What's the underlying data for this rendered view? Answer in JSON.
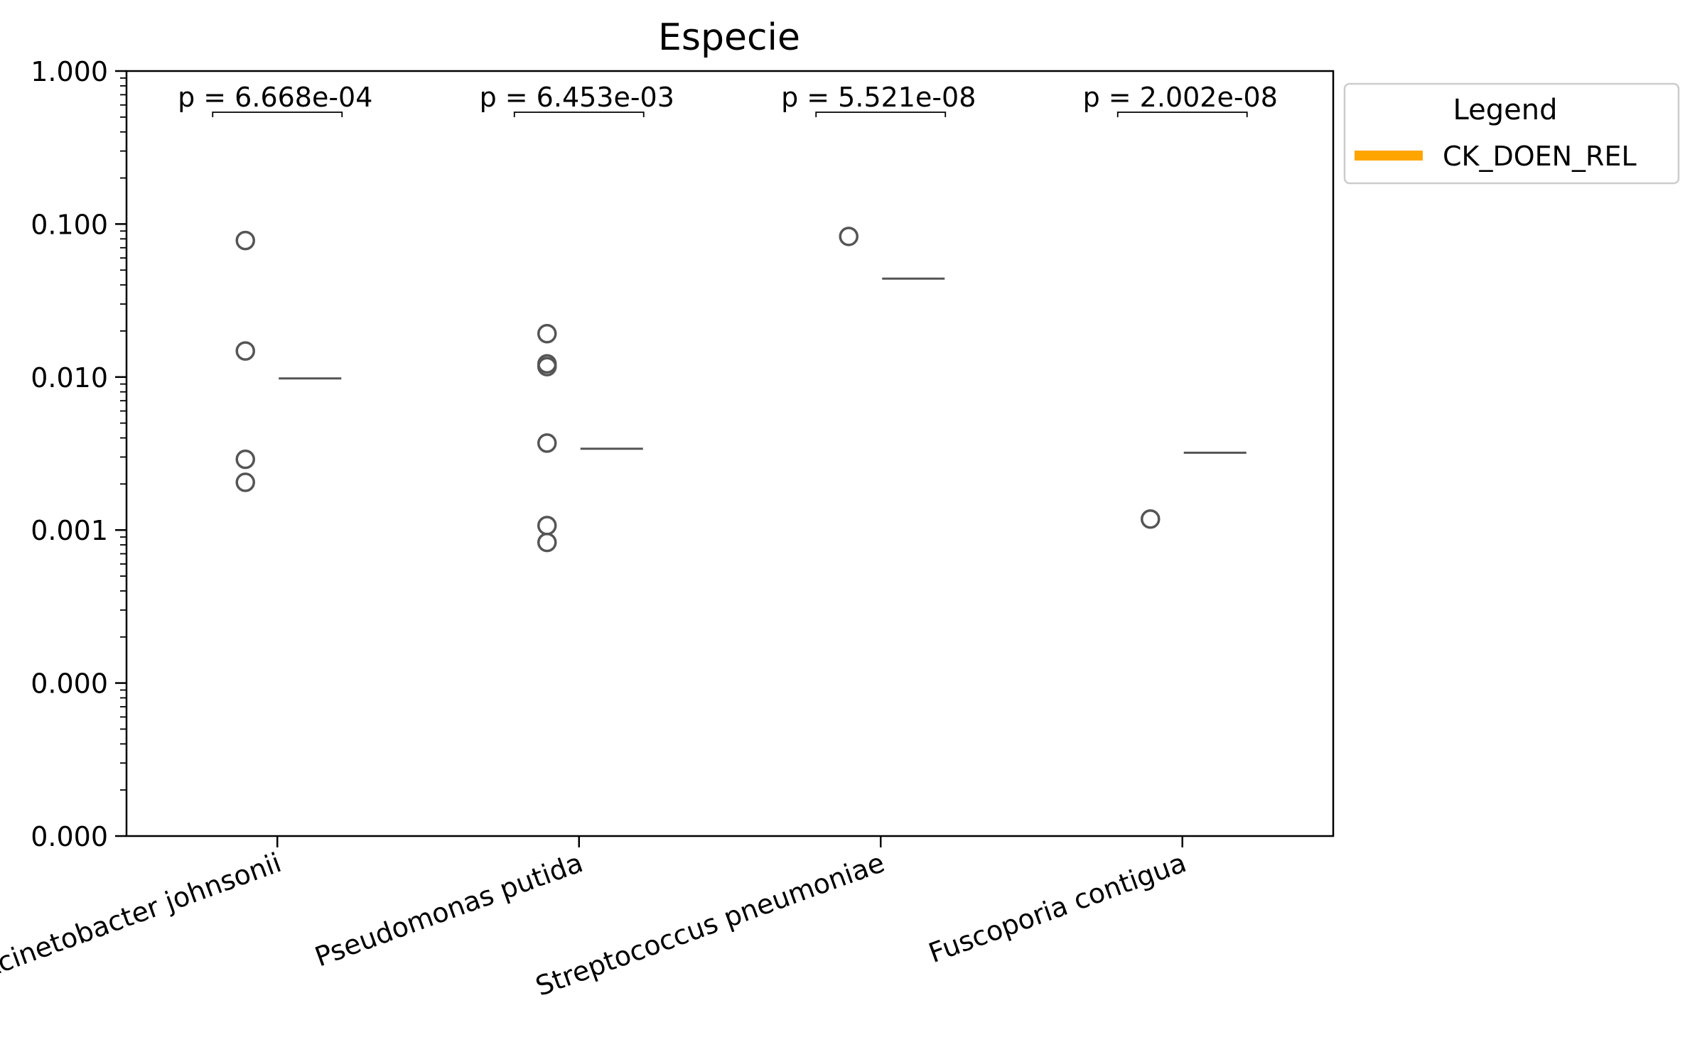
{
  "chart_data": {
    "type": "scatter",
    "title": "Especie",
    "xlabel": "",
    "ylabel": "",
    "yscale": "log",
    "ylim": [
      1e-05,
      1
    ],
    "y_tick_labels": [
      "1.000",
      "0.100",
      "0.010",
      "0.001",
      "0.000",
      "0.000"
    ],
    "y_tick_values": [
      1,
      0.1,
      0.01,
      0.001,
      0.0001,
      1e-05
    ],
    "categories": [
      "Acinetobacter johnsonii",
      "Pseudomonas putida",
      "Streptococcus pneumoniae",
      "Fuscoporia contigua"
    ],
    "points": [
      [
        0.078,
        0.0148,
        0.0029,
        0.00205
      ],
      [
        0.0192,
        0.0122,
        0.0117,
        0.0037,
        0.00107,
        0.00083
      ],
      [
        0.083
      ],
      [
        0.00118
      ]
    ],
    "reference_values": [
      0.0098,
      0.0034,
      0.044,
      0.0032
    ],
    "annotations": [
      "p = 6.668e-04",
      "p = 6.453e-03",
      "p = 5.521e-08",
      "p = 2.002e-08"
    ],
    "legend": {
      "title": "Legend",
      "position": "outside-right",
      "entries": [
        {
          "label": "CK_DOEN_REL",
          "color": "#ffa500"
        }
      ]
    },
    "grid": false,
    "colors": {
      "marker_edge": "#555555",
      "reference_line": "#555555"
    }
  }
}
